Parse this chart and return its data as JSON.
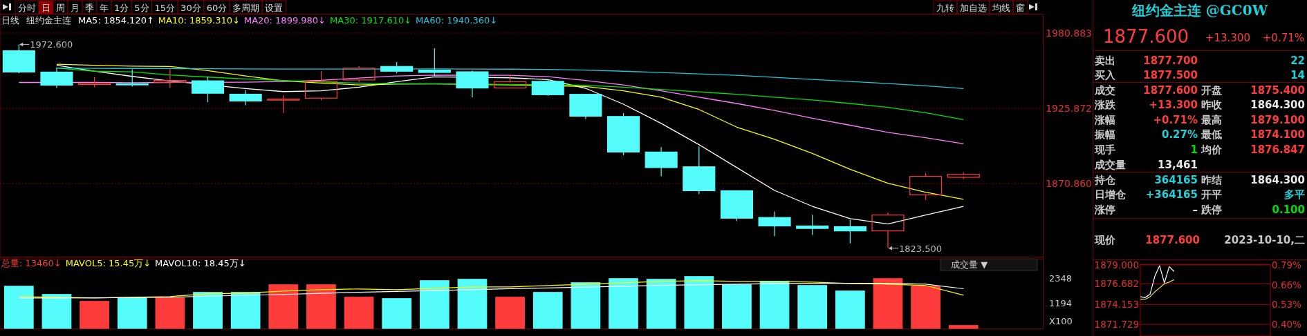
{
  "chart_data": [
    {
      "type": "other",
      "annotations": [
        "分时",
        "日",
        "周",
        "月",
        "季",
        "年",
        "1分",
        "5分",
        "15分",
        "30分",
        "60分",
        "多周期",
        "设置",
        "九转",
        "加自选",
        "均线",
        "窗"
      ]
    },
    {
      "type": "candlestick",
      "title": "日线",
      "subtitle": "纽约金主连",
      "legend": "top",
      "categories": [
        null,
        null,
        null,
        null,
        null,
        null,
        null,
        null,
        null,
        null,
        null,
        null,
        null,
        null,
        null,
        null,
        null,
        null,
        null,
        null,
        null,
        null,
        null,
        null,
        null,
        null
      ],
      "ohlc": [
        [
          1968.0,
          1972.6,
          1951.5,
          1952.4
        ],
        [
          1952.4,
          1955.8,
          1940.7,
          1942.8
        ],
        [
          1943.3,
          1948.6,
          1941.3,
          1944.3
        ],
        [
          1943.8,
          1954.4,
          1941.8,
          1943.0
        ],
        [
          1944.9,
          1955.3,
          1940.7,
          1946.3
        ],
        [
          1946.0,
          1949.0,
          1930.4,
          1936.9
        ],
        [
          1936.2,
          1939.2,
          1928.1,
          1931.2
        ],
        [
          1932.1,
          1935.3,
          1922.4,
          1932.6
        ],
        [
          1933.3,
          1953.1,
          1931.7,
          1945.6
        ],
        [
          1946.6,
          1956.7,
          1945.1,
          1955.3
        ],
        [
          1956.5,
          1959.7,
          1951.5,
          1953.0
        ],
        [
          1953.8,
          1969.8,
          1949.5,
          1952.1
        ],
        [
          1952.6,
          1953.5,
          1934.0,
          1940.7
        ],
        [
          1940.7,
          1949.5,
          1940.5,
          1945.3
        ],
        [
          1945.6,
          1947.2,
          1935.0,
          1935.8
        ],
        [
          1936.1,
          1936.5,
          1918.1,
          1920.1
        ],
        [
          1919.9,
          1922.4,
          1891.6,
          1893.9
        ],
        [
          1893.9,
          1897.5,
          1876.1,
          1882.5
        ],
        [
          1883.1,
          1898.0,
          1863.2,
          1865.6
        ],
        [
          1865.6,
          1865.6,
          1843.4,
          1845.5
        ],
        [
          1846.0,
          1850.4,
          1832.4,
          1839.8
        ],
        [
          1839.8,
          1848.0,
          1833.2,
          1838.0
        ],
        [
          1839.3,
          1844.4,
          1827.1,
          1836.2
        ],
        [
          1836.2,
          1849.6,
          1823.5,
          1847.8
        ],
        [
          1862.6,
          1878.6,
          1858.8,
          1876.1
        ],
        [
          1875.4,
          1879.1,
          1874.1,
          1877.6
        ]
      ],
      "colors": [
        "#54fcfc",
        "#54fcfc",
        "#ff3c3c",
        "#54fcfc",
        "#ff3c3c",
        "#54fcfc",
        "#54fcfc",
        "#ff3c3c",
        "#ff3c3c",
        "#ff3c3c",
        "#54fcfc",
        "#54fcfc",
        "#54fcfc",
        "#ff3c3c",
        "#54fcfc",
        "#54fcfc",
        "#54fcfc",
        "#54fcfc",
        "#54fcfc",
        "#54fcfc",
        "#54fcfc",
        "#54fcfc",
        "#54fcfc",
        "#ff3c3c",
        "#ff3c3c",
        "#ff3c3c"
      ],
      "series": [
        {
          "type": "line",
          "name": "MA5: 1854.120↑",
          "color": "#ffffff",
          "values": [
            null,
            1957.3,
            1953.0,
            1949.2,
            1945.9,
            null,
            1940.3,
            1938.1,
            1938.7,
            1941.3,
            1945.4,
            1948.9,
            null,
            1948.2,
            1946.9,
            1940.5,
            1928.9,
            1914.8,
            1899.3,
            1882.5,
            1865.8,
            1854.2,
            1845.2,
            1841.3,
            1847.8,
            1854.12
          ]
        },
        {
          "type": "line",
          "name": "MA10: 1859.310↓",
          "color": "#ffff00",
          "values": [
            null,
            1958.1,
            1957.3,
            1956.7,
            1956.5,
            1953.4,
            1949.5,
            1946.0,
            1944.3,
            1943.0,
            1943.6,
            1943.7,
            null,
            1943.0,
            null,
            1941.8,
            1938.7,
            1934.0,
            1925.0,
            1912.1,
            1903.2,
            1892.9,
            1881.3,
            1871.0,
            1864.5,
            1859.31
          ]
        },
        {
          "type": "line",
          "name": "MA20: 1899.980↓",
          "color": "#ff80ff",
          "values": [
            1944.8,
            null,
            1944.8,
            1944.6,
            1944.8,
            null,
            1945.0,
            1945.5,
            1946.4,
            1948.0,
            1949.5,
            1950.2,
            null,
            1950.0,
            1949.0,
            1946.2,
            1943.0,
            1938.7,
            1934.0,
            1929.4,
            1924.3,
            1918.6,
            1913.5,
            1908.3,
            1904.4,
            1899.98
          ]
        },
        {
          "type": "line",
          "name": "MA30: 1917.610↓",
          "color": "#00e600",
          "values": [
            null,
            1955.3,
            1953.0,
            1952.6,
            1950.3,
            1948.7,
            1947.4,
            1946.2,
            1945.1,
            1944.3,
            1943.8,
            1943.8,
            null,
            1943.3,
            null,
            1942.7,
            1941.3,
            1939.7,
            1937.9,
            1936.1,
            1934.0,
            1932.0,
            1929.4,
            1926.6,
            1922.7,
            1917.61
          ]
        },
        {
          "type": "line",
          "name": "MA60: 1940.360↓",
          "color": "#1ec8dc",
          "values": [
            null,
            1955.3,
            1955.1,
            1955.0,
            1954.9,
            1954.8,
            1954.7,
            1954.6,
            1954.6,
            1954.6,
            null,
            1954.7,
            1954.6,
            1954.5,
            1954.3,
            1953.8,
            1953.0,
            1952.0,
            1951.0,
            1950.0,
            1948.5,
            1947.0,
            1945.5,
            1944.0,
            1942.3,
            1940.36
          ]
        }
      ],
      "ylim": [
        1815.85,
        1994.5
      ],
      "yticks": [
        1980.883,
        1925.872,
        {
          "value": 1870.86,
          "label": "1870.860"
        }
      ],
      "grid": "y",
      "annotations": [
        "1972.600",
        "1823.500"
      ]
    },
    {
      "type": "bar",
      "legend": "top",
      "categories": [
        null,
        null,
        null,
        null,
        null,
        null,
        null,
        null,
        null,
        null,
        null,
        null,
        null,
        null,
        null,
        null,
        null,
        null,
        null,
        null,
        null,
        null,
        null,
        null,
        null,
        null
      ],
      "series": [
        {
          "type": "bar",
          "name": "总量: 13460↓",
          "color": "#ff3c3c",
          "colors": [
            "#54fcfc",
            "#54fcfc",
            "#ff3c3c",
            "#54fcfc",
            "#ff3c3c",
            "#54fcfc",
            "#54fcfc",
            "#ff3c3c",
            "#ff3c3c",
            "#ff3c3c",
            "#54fcfc",
            "#54fcfc",
            "#54fcfc",
            "#ff3c3c",
            "#54fcfc",
            "#54fcfc",
            "#54fcfc",
            "#54fcfc",
            "#54fcfc",
            "#54fcfc",
            "#54fcfc",
            "#54fcfc",
            "#54fcfc",
            "#ff3c3c",
            "#ff3c3c",
            "#ff3c3c"
          ],
          "values": [
            1963,
            1579,
            1258,
            1418,
            1418,
            1675,
            1675,
            2028,
            2028,
            1450,
            1386,
            2220,
            2284,
            1450,
            1675,
            2124,
            2316,
            2284,
            2412,
            2028,
            2188,
            1995,
            1739,
            2316,
            1963,
            134.6
          ]
        },
        {
          "type": "line",
          "name": "MAVOL5: 15.45万↓",
          "color": "#ffff00",
          "values": [
            1483,
            1450,
            1418,
            1450,
            1483,
            1611,
            1643,
            1739,
            1803,
            1835,
            1803,
            1867,
            1931,
            1931,
            1996,
            2060,
            2124,
            2188,
            2220,
            2188,
            2188,
            2156,
            2092,
            2060,
            1996,
            1545
          ]
        },
        {
          "type": "line",
          "name": "MAVOL10: 18.45万↓",
          "color": "#ffffff",
          "values": [
            1418,
            1418,
            1420,
            1440,
            1450,
            1500,
            1540,
            1580,
            1630,
            1680,
            1720,
            1760,
            1800,
            1850,
            1880,
            1920,
            1960,
            2000,
            2030,
            2060,
            2080,
            2100,
            2100,
            2100,
            2060,
            1845
          ]
        }
      ],
      "ylim": [
        0,
        3320
      ],
      "yticks": [
        1194,
        2348
      ],
      "annotations": [
        "成交量 ▼",
        "X100"
      ]
    },
    {
      "type": "other",
      "title": "纽约金主连 @GC0W",
      "annotations": [
        "1877.600",
        "+13.300",
        "+0.71%",
        "卖出",
        "1877.700",
        "22",
        "买入",
        "1877.500",
        "14",
        "成交",
        "1877.600",
        "开盘",
        "1875.400",
        "涨跌",
        "+13.300",
        "昨收",
        "1864.300",
        "涨幅",
        "+0.71%",
        "最高",
        "1879.100",
        "振幅",
        "0.27%",
        "最低",
        "1874.100",
        "现手",
        "1",
        "均价",
        "1876.847",
        "成交量",
        "13,461",
        "持仓",
        "364165",
        "昨结",
        "1864.300",
        "日增仓",
        "+364165",
        "开平",
        "多平",
        "涨停",
        "–",
        "跌停",
        "0.100",
        "现价",
        "1877.600",
        "2023-10-10,二"
      ]
    },
    {
      "type": "line",
      "categories": [
        null,
        null,
        null,
        null,
        null,
        null,
        null,
        null,
        null,
        null,
        null,
        null,
        null,
        null,
        null,
        null,
        null,
        null,
        null,
        null,
        null,
        null,
        null,
        null,
        null,
        null,
        null,
        null
      ],
      "series": [
        {
          "color": "#ffffff",
          "values": [
            1875.1,
            1875.0,
            1875.4,
            1877.6,
            1878.9,
            1876.8,
            1878.8,
            1878.2,
            null,
            null,
            null,
            null,
            null,
            null,
            null,
            null,
            null,
            null,
            null,
            null,
            null,
            null,
            null,
            null,
            null,
            null,
            null,
            null
          ]
        },
        {
          "color": "#e8e060",
          "values": [
            1874.8,
            1874.8,
            1875.1,
            1875.7,
            1876.2,
            1876.7,
            1876.9,
            1877.2,
            null,
            null,
            null,
            null,
            null,
            null,
            null,
            null,
            null,
            null,
            null,
            null,
            null,
            null,
            null,
            null,
            null,
            null,
            null,
            null
          ]
        }
      ],
      "ylim": [
        1870.3,
        1879.05
      ],
      "yticks": [
        {
          "value": 1879,
          "label": "1879.000"
        },
        1876.682,
        1874.153,
        1871.729
      ],
      "y2lim": [
        0.324,
        0.793
      ],
      "y2ticks": [
        {
          "value": 0.79,
          "label": "0.79%"
        },
        {
          "value": 0.66,
          "label": "0.66%"
        },
        {
          "value": 0.53,
          "label": "0.53%"
        },
        {
          "value": 0.4,
          "label": "0.40%"
        }
      ],
      "grid": "y"
    }
  ]
}
